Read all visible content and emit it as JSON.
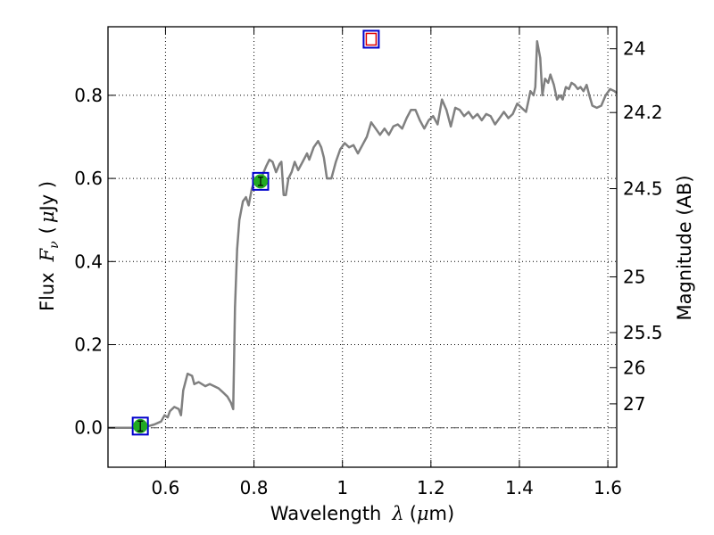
{
  "chart_data": {
    "type": "line",
    "title": "",
    "xlabel": "Wavelength",
    "xlabel_symbol": "λ",
    "xlabel_unit_open": "(",
    "xlabel_unit_mu": "μ",
    "xlabel_unit_rest": "m)",
    "ylabel": "Flux",
    "ylabel_symbol": "F",
    "ylabel_subscript": "ν",
    "ylabel_unit_open": "(",
    "ylabel_unit_mu": "μ",
    "ylabel_unit_rest": "Jy )",
    "y2label": "Magnitude (AB)",
    "xlim": [
      0.47,
      1.62
    ],
    "ylim": [
      -0.095,
      0.965
    ],
    "grid": true,
    "zero_line": true,
    "x_ticks": [
      {
        "v": 0.6,
        "label": "0.6"
      },
      {
        "v": 0.8,
        "label": "0.8"
      },
      {
        "v": 1.0,
        "label": "1"
      },
      {
        "v": 1.2,
        "label": "1.2"
      },
      {
        "v": 1.4,
        "label": "1.4"
      },
      {
        "v": 1.6,
        "label": "1.6"
      }
    ],
    "y_ticks": [
      {
        "v": 0.0,
        "label": "0.0"
      },
      {
        "v": 0.2,
        "label": "0.2"
      },
      {
        "v": 0.4,
        "label": "0.4"
      },
      {
        "v": 0.6,
        "label": "0.6"
      },
      {
        "v": 0.8,
        "label": "0.8"
      }
    ],
    "y2_ticks": [
      {
        "mag": 24,
        "label": "24"
      },
      {
        "mag": 24.2,
        "label": "24.2"
      },
      {
        "mag": 24.5,
        "label": "24.5"
      },
      {
        "mag": 25,
        "label": "25"
      },
      {
        "mag": 25.5,
        "label": "25.5"
      },
      {
        "mag": 26,
        "label": "26"
      },
      {
        "mag": 27,
        "label": "27"
      }
    ],
    "colors": {
      "spectrum": "#808080",
      "observed_marker": "#22aa22",
      "model_box": "#0000cc",
      "upper_limit_marker": "#dd0000",
      "zero_line": "#555555"
    },
    "series": [
      {
        "type": "line",
        "points": [
          [
            0.47,
            0.0
          ],
          [
            0.53,
            0.0
          ],
          [
            0.555,
            0.002
          ],
          [
            0.575,
            0.008
          ],
          [
            0.59,
            0.015
          ],
          [
            0.598,
            0.03
          ],
          [
            0.605,
            0.025
          ],
          [
            0.61,
            0.04
          ],
          [
            0.62,
            0.05
          ],
          [
            0.63,
            0.045
          ],
          [
            0.635,
            0.03
          ],
          [
            0.64,
            0.09
          ],
          [
            0.65,
            0.13
          ],
          [
            0.66,
            0.125
          ],
          [
            0.665,
            0.105
          ],
          [
            0.675,
            0.11
          ],
          [
            0.69,
            0.1
          ],
          [
            0.7,
            0.105
          ],
          [
            0.71,
            0.1
          ],
          [
            0.72,
            0.095
          ],
          [
            0.73,
            0.085
          ],
          [
            0.74,
            0.075
          ],
          [
            0.748,
            0.06
          ],
          [
            0.753,
            0.045
          ],
          [
            0.757,
            0.29
          ],
          [
            0.762,
            0.43
          ],
          [
            0.767,
            0.5
          ],
          [
            0.775,
            0.545
          ],
          [
            0.782,
            0.555
          ],
          [
            0.788,
            0.535
          ],
          [
            0.795,
            0.575
          ],
          [
            0.803,
            0.6
          ],
          [
            0.81,
            0.59
          ],
          [
            0.82,
            0.61
          ],
          [
            0.828,
            0.63
          ],
          [
            0.835,
            0.645
          ],
          [
            0.842,
            0.64
          ],
          [
            0.85,
            0.615
          ],
          [
            0.858,
            0.635
          ],
          [
            0.862,
            0.64
          ],
          [
            0.867,
            0.56
          ],
          [
            0.872,
            0.56
          ],
          [
            0.878,
            0.6
          ],
          [
            0.885,
            0.615
          ],
          [
            0.892,
            0.64
          ],
          [
            0.9,
            0.62
          ],
          [
            0.91,
            0.64
          ],
          [
            0.92,
            0.66
          ],
          [
            0.925,
            0.645
          ],
          [
            0.935,
            0.675
          ],
          [
            0.945,
            0.69
          ],
          [
            0.952,
            0.675
          ],
          [
            0.958,
            0.65
          ],
          [
            0.965,
            0.6
          ],
          [
            0.975,
            0.6
          ],
          [
            0.985,
            0.64
          ],
          [
            0.995,
            0.67
          ],
          [
            1.005,
            0.685
          ],
          [
            1.015,
            0.675
          ],
          [
            1.025,
            0.68
          ],
          [
            1.035,
            0.66
          ],
          [
            1.045,
            0.68
          ],
          [
            1.055,
            0.7
          ],
          [
            1.065,
            0.735
          ],
          [
            1.075,
            0.72
          ],
          [
            1.085,
            0.705
          ],
          [
            1.095,
            0.72
          ],
          [
            1.105,
            0.705
          ],
          [
            1.115,
            0.725
          ],
          [
            1.125,
            0.73
          ],
          [
            1.135,
            0.72
          ],
          [
            1.145,
            0.745
          ],
          [
            1.155,
            0.765
          ],
          [
            1.165,
            0.765
          ],
          [
            1.175,
            0.74
          ],
          [
            1.185,
            0.72
          ],
          [
            1.195,
            0.74
          ],
          [
            1.205,
            0.75
          ],
          [
            1.215,
            0.73
          ],
          [
            1.225,
            0.79
          ],
          [
            1.235,
            0.765
          ],
          [
            1.245,
            0.725
          ],
          [
            1.255,
            0.77
          ],
          [
            1.265,
            0.765
          ],
          [
            1.275,
            0.75
          ],
          [
            1.285,
            0.76
          ],
          [
            1.295,
            0.745
          ],
          [
            1.305,
            0.755
          ],
          [
            1.315,
            0.74
          ],
          [
            1.325,
            0.755
          ],
          [
            1.335,
            0.75
          ],
          [
            1.345,
            0.73
          ],
          [
            1.355,
            0.745
          ],
          [
            1.365,
            0.76
          ],
          [
            1.375,
            0.745
          ],
          [
            1.385,
            0.755
          ],
          [
            1.395,
            0.78
          ],
          [
            1.405,
            0.77
          ],
          [
            1.415,
            0.76
          ],
          [
            1.42,
            0.785
          ],
          [
            1.425,
            0.81
          ],
          [
            1.432,
            0.8
          ],
          [
            1.436,
            0.82
          ],
          [
            1.44,
            0.93
          ],
          [
            1.447,
            0.89
          ],
          [
            1.452,
            0.8
          ],
          [
            1.458,
            0.84
          ],
          [
            1.465,
            0.83
          ],
          [
            1.47,
            0.85
          ],
          [
            1.478,
            0.825
          ],
          [
            1.485,
            0.79
          ],
          [
            1.492,
            0.8
          ],
          [
            1.498,
            0.79
          ],
          [
            1.505,
            0.82
          ],
          [
            1.512,
            0.815
          ],
          [
            1.518,
            0.83
          ],
          [
            1.525,
            0.825
          ],
          [
            1.532,
            0.815
          ],
          [
            1.538,
            0.82
          ],
          [
            1.545,
            0.81
          ],
          [
            1.552,
            0.825
          ],
          [
            1.558,
            0.8
          ],
          [
            1.565,
            0.775
          ],
          [
            1.575,
            0.77
          ],
          [
            1.585,
            0.775
          ],
          [
            1.595,
            0.8
          ],
          [
            1.605,
            0.815
          ],
          [
            1.615,
            0.81
          ],
          [
            1.62,
            0.805
          ]
        ]
      }
    ],
    "observed_points": [
      {
        "x": 0.543,
        "y": 0.004,
        "yerr": 0.012
      },
      {
        "x": 0.815,
        "y": 0.593,
        "yerr": 0.01
      }
    ],
    "model_boxes": [
      {
        "x": 0.543,
        "y": 0.004
      },
      {
        "x": 0.815,
        "y": 0.593
      }
    ],
    "upper_limits": [
      {
        "x": 1.065,
        "y": 0.935
      }
    ]
  }
}
